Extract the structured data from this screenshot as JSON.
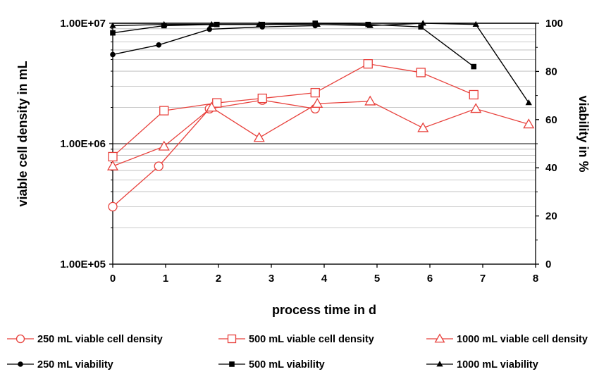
{
  "chart_data": {
    "type": "line",
    "x_axis": {
      "label": "process time in d",
      "range": [
        0,
        8
      ],
      "ticks": [
        "0",
        "1",
        "2",
        "3",
        "4",
        "5",
        "6",
        "7",
        "8"
      ]
    },
    "y_left": {
      "label": "viable cell density in mL",
      "scale": "log",
      "range": [
        100000,
        10000000
      ],
      "ticks": [
        "1.00E+05",
        "1.00E+06",
        "1.00E+07"
      ]
    },
    "y_right": {
      "label": "viability in %",
      "range": [
        0,
        100
      ],
      "ticks": [
        "0",
        "20",
        "40",
        "60",
        "80",
        "100"
      ]
    },
    "grid": "horizontal",
    "legend_position": "bottom",
    "series": [
      {
        "name": "250 mL viable cell density",
        "axis": "left",
        "marker": "circle",
        "filled": false,
        "color": "#e8413c",
        "x": [
          0,
          0.87,
          1.83,
          2.83,
          3.83
        ],
        "y": [
          300000,
          650000,
          1950000,
          2300000,
          1950000
        ]
      },
      {
        "name": "500 mL viable cell density",
        "axis": "left",
        "marker": "square",
        "filled": false,
        "color": "#e8413c",
        "x": [
          0,
          0.97,
          1.97,
          2.83,
          3.83,
          4.83,
          5.83,
          6.83
        ],
        "y": [
          780000,
          1880000,
          2180000,
          2380000,
          2650000,
          4600000,
          3900000,
          2550000
        ]
      },
      {
        "name": "1000 mL viable cell density",
        "axis": "left",
        "marker": "triangle",
        "filled": false,
        "color": "#e8413c",
        "x": [
          0,
          0.97,
          1.87,
          2.77,
          3.87,
          4.87,
          5.87,
          6.87,
          7.87
        ],
        "y": [
          650000,
          950000,
          2000000,
          1120000,
          2150000,
          2250000,
          1350000,
          1950000,
          1450000
        ]
      },
      {
        "name": "250 mL viability",
        "axis": "right",
        "marker": "circle",
        "filled": true,
        "color": "#000000",
        "x": [
          0,
          0.87,
          1.83,
          2.83,
          3.83
        ],
        "y": [
          87,
          91,
          97.5,
          98.5,
          99
        ]
      },
      {
        "name": "500 mL viability",
        "axis": "right",
        "marker": "square",
        "filled": true,
        "color": "#000000",
        "x": [
          0,
          0.97,
          1.97,
          2.83,
          3.83,
          4.83,
          5.83,
          6.83
        ],
        "y": [
          96,
          99,
          99.5,
          99.5,
          100,
          99.5,
          98.5,
          82
        ]
      },
      {
        "name": "1000 mL viability",
        "axis": "right",
        "marker": "triangle",
        "filled": true,
        "color": "#000000",
        "x": [
          0,
          0.97,
          1.87,
          2.77,
          3.87,
          4.87,
          5.87,
          6.87,
          7.87
        ],
        "y": [
          99,
          99.5,
          99.5,
          99.5,
          99.5,
          99,
          100,
          99.5,
          67
        ]
      }
    ]
  }
}
